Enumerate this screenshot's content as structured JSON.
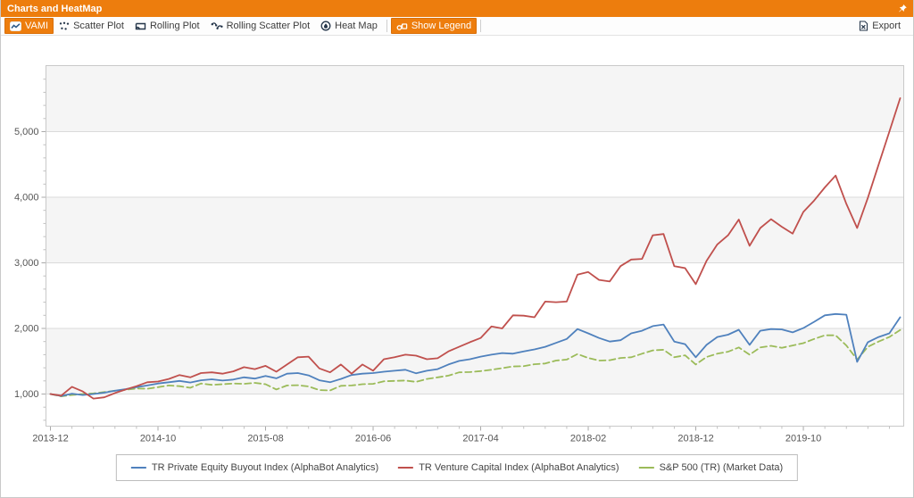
{
  "window": {
    "title": "Charts and HeatMap",
    "pin_icon": "pin"
  },
  "toolbar": {
    "items": [
      {
        "label": "VAMI",
        "icon": "line-chart-icon",
        "active": true
      },
      {
        "label": "Scatter Plot",
        "icon": "scatter-icon",
        "active": false
      },
      {
        "label": "Rolling Plot",
        "icon": "rolling-plot-icon",
        "active": false
      },
      {
        "label": "Rolling Scatter Plot",
        "icon": "rolling-scatter-icon",
        "active": false
      },
      {
        "label": "Heat Map",
        "icon": "heat-map-icon",
        "active": false
      },
      {
        "label": "Show Legend",
        "icon": "legend-icon",
        "active": true
      }
    ],
    "export_label": "Export"
  },
  "chart_data": {
    "type": "line",
    "title": "",
    "xlabel": "",
    "ylabel": "",
    "x_start": "2013-12",
    "x_frequency": "monthly",
    "x_major_tick_months": [
      0,
      10,
      20,
      30,
      40,
      50,
      60,
      70
    ],
    "x_tick_labels": [
      "2013-12",
      "2014-10",
      "2015-08",
      "2016-06",
      "2017-04",
      "2018-02",
      "2018-12",
      "2019-10"
    ],
    "y_ticks": [
      1000,
      2000,
      3000,
      4000,
      5000
    ],
    "y_tick_labels": [
      "1,000",
      "2,000",
      "3,000",
      "4,000",
      "5,000"
    ],
    "ylim": [
      510,
      6010
    ],
    "grid": "horizontal",
    "band_fill": "#f5f5f5",
    "legend_position": "bottom",
    "series": [
      {
        "name": "TR Private Equity Buyout Index (AlphaBot Analytics)",
        "color": "#4f81bd",
        "style": "solid",
        "values": [
          1000,
          970,
          1005,
          985,
          1000,
          1020,
          1050,
          1075,
          1105,
          1130,
          1160,
          1180,
          1200,
          1175,
          1210,
          1225,
          1205,
          1220,
          1255,
          1235,
          1275,
          1240,
          1310,
          1320,
          1285,
          1210,
          1180,
          1230,
          1290,
          1310,
          1320,
          1340,
          1355,
          1370,
          1315,
          1355,
          1380,
          1450,
          1505,
          1530,
          1570,
          1600,
          1625,
          1615,
          1650,
          1680,
          1720,
          1780,
          1840,
          1990,
          1925,
          1855,
          1800,
          1820,
          1925,
          1965,
          2035,
          2060,
          1800,
          1760,
          1560,
          1750,
          1870,
          1905,
          1980,
          1750,
          1965,
          1990,
          1985,
          1940,
          2005,
          2100,
          2200,
          2220,
          2210,
          1490,
          1790,
          1870,
          1925,
          2170
        ]
      },
      {
        "name": "TR Venture Capital Index (AlphaBot Analytics)",
        "color": "#c0504d",
        "style": "solid",
        "values": [
          1000,
          975,
          1110,
          1040,
          930,
          950,
          1015,
          1070,
          1120,
          1180,
          1190,
          1230,
          1290,
          1255,
          1320,
          1330,
          1310,
          1345,
          1410,
          1380,
          1430,
          1340,
          1450,
          1560,
          1570,
          1390,
          1330,
          1450,
          1310,
          1450,
          1355,
          1530,
          1560,
          1600,
          1585,
          1530,
          1545,
          1650,
          1720,
          1790,
          1855,
          2030,
          2000,
          2200,
          2195,
          2170,
          2410,
          2400,
          2410,
          2820,
          2860,
          2740,
          2715,
          2950,
          3050,
          3060,
          3420,
          3440,
          2950,
          2920,
          2675,
          3030,
          3280,
          3420,
          3660,
          3260,
          3530,
          3665,
          3550,
          3445,
          3775,
          3950,
          4150,
          4330,
          3900,
          3530,
          3990,
          4500,
          5000,
          5510
        ]
      },
      {
        "name": "S&P 500 (TR) (Market Data)",
        "color": "#9bbb59",
        "style": "dashed",
        "values": [
          1000,
          965,
          985,
          1000,
          1010,
          1030,
          1050,
          1065,
          1085,
          1080,
          1105,
          1130,
          1120,
          1095,
          1160,
          1140,
          1150,
          1160,
          1155,
          1170,
          1150,
          1070,
          1130,
          1135,
          1115,
          1060,
          1055,
          1125,
          1130,
          1150,
          1155,
          1195,
          1200,
          1205,
          1185,
          1230,
          1255,
          1280,
          1330,
          1335,
          1350,
          1370,
          1395,
          1420,
          1425,
          1455,
          1465,
          1510,
          1525,
          1610,
          1550,
          1510,
          1515,
          1550,
          1560,
          1615,
          1665,
          1675,
          1560,
          1590,
          1450,
          1565,
          1615,
          1645,
          1710,
          1600,
          1710,
          1735,
          1705,
          1740,
          1775,
          1840,
          1895,
          1895,
          1740,
          1525,
          1720,
          1800,
          1870,
          1975
        ]
      }
    ]
  }
}
